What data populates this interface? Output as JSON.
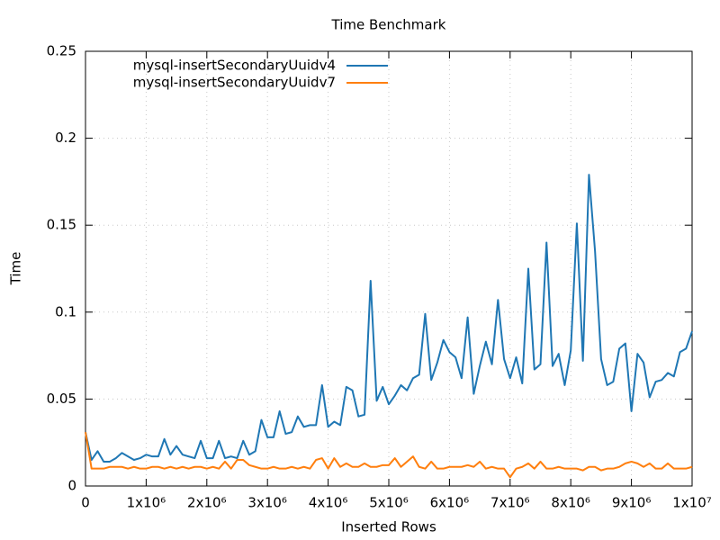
{
  "chart_data": {
    "type": "line",
    "title": "Time Benchmark",
    "xlabel": "Inserted Rows",
    "ylabel": "Time",
    "x": [
      0,
      100000,
      200000,
      300000,
      400000,
      500000,
      600000,
      700000,
      800000,
      900000,
      1000000,
      1100000,
      1200000,
      1300000,
      1400000,
      1500000,
      1600000,
      1700000,
      1800000,
      1900000,
      2000000,
      2100000,
      2200000,
      2300000,
      2400000,
      2500000,
      2600000,
      2700000,
      2800000,
      2900000,
      3000000,
      3100000,
      3200000,
      3300000,
      3400000,
      3500000,
      3600000,
      3700000,
      3800000,
      3900000,
      4000000,
      4100000,
      4200000,
      4300000,
      4400000,
      4500000,
      4600000,
      4700000,
      4800000,
      4900000,
      5000000,
      5100000,
      5200000,
      5300000,
      5400000,
      5500000,
      5600000,
      5700000,
      5800000,
      5900000,
      6000000,
      6100000,
      6200000,
      6300000,
      6400000,
      6500000,
      6600000,
      6700000,
      6800000,
      6900000,
      7000000,
      7100000,
      7200000,
      7300000,
      7400000,
      7500000,
      7600000,
      7700000,
      7800000,
      7900000,
      8000000,
      8100000,
      8200000,
      8300000,
      8400000,
      8500000,
      8600000,
      8700000,
      8800000,
      8900000,
      9000000,
      9100000,
      9200000,
      9300000,
      9400000,
      9500000,
      9600000,
      9700000,
      9800000,
      9900000,
      10000000
    ],
    "series": [
      {
        "name": "mysql-insertSecondaryUuidv4",
        "color": "#1f77b4",
        "values": [
          0.031,
          0.015,
          0.02,
          0.014,
          0.014,
          0.016,
          0.019,
          0.017,
          0.015,
          0.016,
          0.018,
          0.017,
          0.017,
          0.027,
          0.018,
          0.023,
          0.018,
          0.017,
          0.016,
          0.026,
          0.016,
          0.016,
          0.026,
          0.016,
          0.017,
          0.016,
          0.026,
          0.018,
          0.02,
          0.038,
          0.028,
          0.028,
          0.043,
          0.03,
          0.031,
          0.04,
          0.034,
          0.035,
          0.035,
          0.058,
          0.034,
          0.037,
          0.035,
          0.057,
          0.055,
          0.04,
          0.041,
          0.118,
          0.049,
          0.057,
          0.047,
          0.052,
          0.058,
          0.055,
          0.062,
          0.064,
          0.099,
          0.061,
          0.071,
          0.084,
          0.077,
          0.074,
          0.062,
          0.097,
          0.053,
          0.069,
          0.083,
          0.07,
          0.107,
          0.073,
          0.062,
          0.074,
          0.059,
          0.125,
          0.067,
          0.07,
          0.14,
          0.069,
          0.076,
          0.058,
          0.078,
          0.151,
          0.072,
          0.179,
          0.135,
          0.073,
          0.058,
          0.06,
          0.079,
          0.082,
          0.043,
          0.076,
          0.071,
          0.051,
          0.06,
          0.061,
          0.065,
          0.063,
          0.077,
          0.079,
          0.089
        ]
      },
      {
        "name": "mysql-insertSecondaryUuidv7",
        "color": "#ff7f0e",
        "values": [
          0.031,
          0.01,
          0.01,
          0.01,
          0.011,
          0.011,
          0.011,
          0.01,
          0.011,
          0.01,
          0.01,
          0.011,
          0.011,
          0.01,
          0.011,
          0.01,
          0.011,
          0.01,
          0.011,
          0.011,
          0.01,
          0.011,
          0.01,
          0.014,
          0.01,
          0.015,
          0.015,
          0.012,
          0.011,
          0.01,
          0.01,
          0.011,
          0.01,
          0.01,
          0.011,
          0.01,
          0.011,
          0.01,
          0.015,
          0.016,
          0.01,
          0.016,
          0.011,
          0.013,
          0.011,
          0.011,
          0.013,
          0.011,
          0.011,
          0.012,
          0.012,
          0.016,
          0.011,
          0.014,
          0.017,
          0.011,
          0.01,
          0.014,
          0.01,
          0.01,
          0.011,
          0.011,
          0.011,
          0.012,
          0.011,
          0.014,
          0.01,
          0.011,
          0.01,
          0.01,
          0.005,
          0.01,
          0.011,
          0.013,
          0.01,
          0.014,
          0.01,
          0.01,
          0.011,
          0.01,
          0.01,
          0.01,
          0.009,
          0.011,
          0.011,
          0.009,
          0.01,
          0.01,
          0.011,
          0.013,
          0.014,
          0.013,
          0.011,
          0.013,
          0.01,
          0.01,
          0.013,
          0.01,
          0.01,
          0.01,
          0.011
        ]
      }
    ],
    "xlim": [
      0,
      10000000
    ],
    "xticks": [
      0,
      {
        "value": 1000000,
        "label": "1x10⁶"
      },
      {
        "value": 2000000,
        "label": "2x10⁶"
      },
      {
        "value": 3000000,
        "label": "3x10⁶"
      },
      {
        "value": 4000000,
        "label": "4x10⁶"
      },
      {
        "value": 5000000,
        "label": "5x10⁶"
      },
      {
        "value": 6000000,
        "label": "6x10⁶"
      },
      {
        "value": 7000000,
        "label": "7x10⁶"
      },
      {
        "value": 8000000,
        "label": "8x10⁶"
      },
      {
        "value": 9000000,
        "label": "9x10⁶"
      },
      {
        "value": 10000000,
        "label": "1x10⁷"
      }
    ],
    "ylim": [
      0,
      0.25
    ],
    "yticks": [
      0,
      0.05,
      0.1,
      0.15,
      0.2,
      0.25
    ],
    "grid": true,
    "legend": "top-left"
  }
}
